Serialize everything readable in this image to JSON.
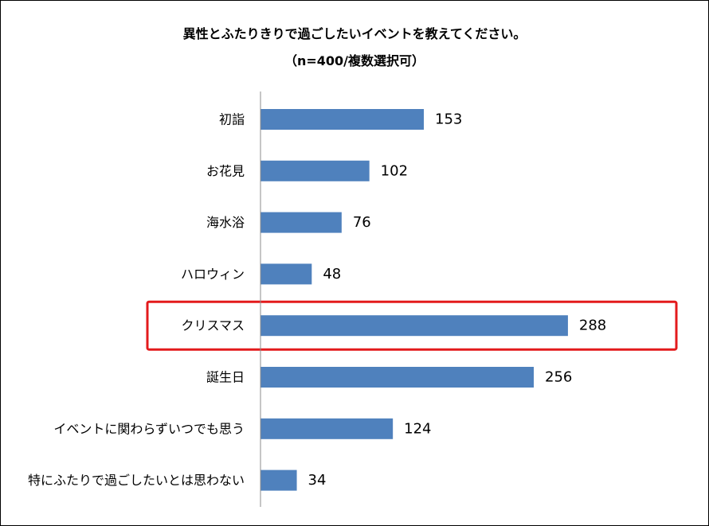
{
  "chart_data": {
    "type": "bar",
    "orientation": "horizontal",
    "title": "異性とふたりきりで過ごしたいイベントを教えてください。",
    "subtitle": "（n=400/複数選択可）",
    "categories": [
      "初詣",
      "お花見",
      "海水浴",
      "ハロウィン",
      "クリスマス",
      "誕生日",
      "イベントに関わらずいつでも思う",
      "特にふたりで過ごしたいとは思わない"
    ],
    "values": [
      153,
      102,
      76,
      48,
      288,
      256,
      124,
      34
    ],
    "xlim": [
      0,
      400
    ],
    "grid": false,
    "legend": "none",
    "highlight_category": "クリスマス",
    "colors": {
      "bar": "#4f81bd",
      "highlight_box": "#e31a1c",
      "axis": "#8c8c8c"
    }
  }
}
